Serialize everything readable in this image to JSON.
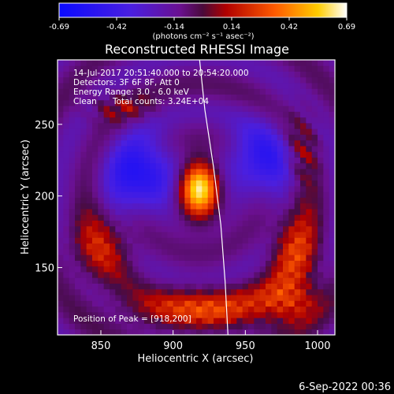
{
  "chart_data": {
    "type": "heatmap",
    "title": "Reconstructed RHESSI Image",
    "xlabel": "Heliocentric X (arcsec)",
    "ylabel": "Heliocentric Y (arcsec)",
    "xlim": [
      820,
      1012
    ],
    "ylim": [
      103,
      295
    ],
    "x_ticks": [
      850,
      900,
      950,
      1000
    ],
    "y_ticks": [
      150,
      200,
      250
    ],
    "colorbar": {
      "min": -0.69,
      "max": 0.69,
      "ticks": [
        "-0.69",
        "-0.42",
        "-0.14",
        "0.14",
        "0.42",
        "0.69"
      ],
      "unit_label": "(photons cm⁻² s⁻¹ asec⁻²)"
    },
    "annotations": {
      "time_range": "14-Jul-2017 20:51:40.000 to 20:54:20.000",
      "detectors": "Detectors: 3F 6F 8F, Att 0",
      "energy_range": "Energy Range: 3.0 - 6.0 keV",
      "clean_label": "Clean",
      "total_counts": "Total counts: 3.24E+04",
      "peak_position": "Position of Peak = [918,200]"
    },
    "peak": {
      "x": 918,
      "y": 200
    },
    "limb_curve": [
      [
        918,
        298
      ],
      [
        922,
        260
      ],
      [
        928,
        220
      ],
      [
        933,
        180
      ],
      [
        936,
        140
      ],
      [
        938,
        103
      ]
    ],
    "sources": [
      {
        "x": 918,
        "y": 205,
        "amp": 0.78,
        "sx": 9,
        "sy": 13,
        "kind": "core"
      },
      {
        "x": 922,
        "y": 120,
        "amp": 0.42,
        "sx": 38,
        "sy": 11,
        "kind": "ridge"
      },
      {
        "x": 850,
        "y": 165,
        "amp": 0.32,
        "sx": 16,
        "sy": 18,
        "kind": "blob"
      },
      {
        "x": 985,
        "y": 160,
        "amp": 0.4,
        "sx": 12,
        "sy": 24,
        "kind": "blob"
      },
      {
        "x": 978,
        "y": 128,
        "amp": 0.3,
        "sx": 14,
        "sy": 10,
        "kind": "blob"
      },
      {
        "x": 862,
        "y": 262,
        "amp": 0.26,
        "sx": 16,
        "sy": 7,
        "kind": "ripple"
      },
      {
        "x": 990,
        "y": 235,
        "amp": 0.24,
        "sx": 8,
        "sy": 20,
        "kind": "ripple"
      },
      {
        "x": 878,
        "y": 215,
        "amp": -0.46,
        "sx": 16,
        "sy": 18,
        "kind": "hole"
      },
      {
        "x": 960,
        "y": 225,
        "amp": -0.36,
        "sx": 16,
        "sy": 18,
        "kind": "hole"
      }
    ],
    "grid": false
  },
  "footer": {
    "date_stamp": "6-Sep-2022 00:36"
  }
}
